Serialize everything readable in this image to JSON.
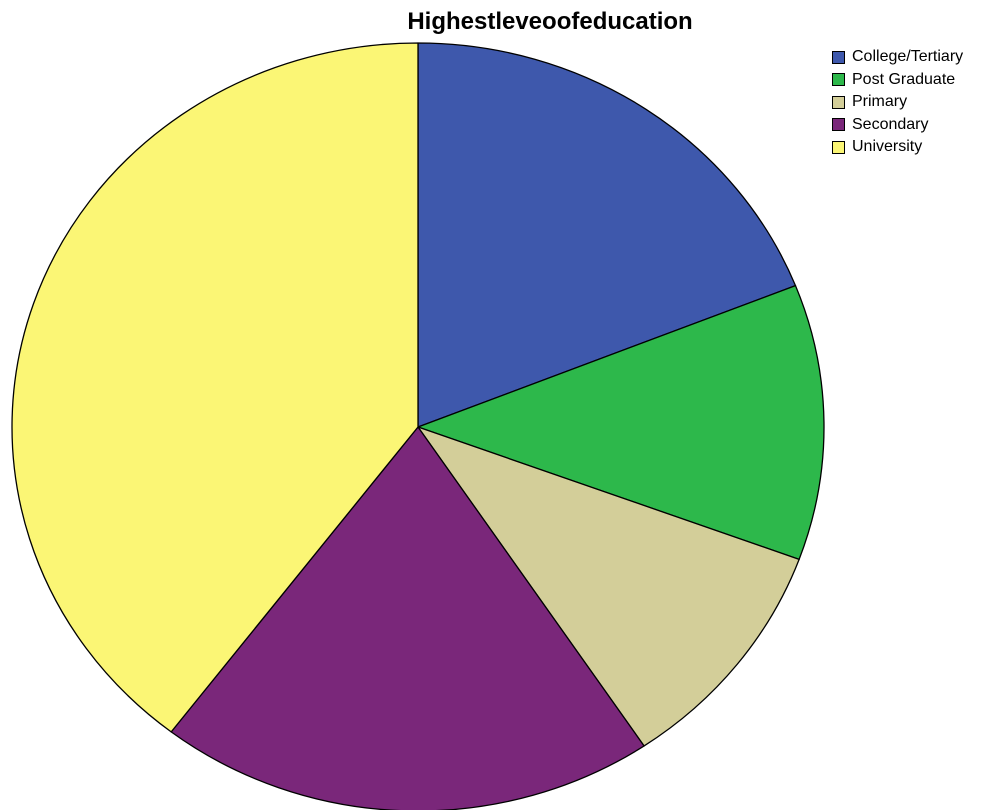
{
  "chart_data": {
    "type": "pie",
    "title": "Highestleveoofeducation",
    "categories": [
      "College/Tertiary",
      "Post Graduate",
      "Primary",
      "Secondary",
      "University"
    ],
    "values": [
      19.0,
      11.6,
      10.0,
      19.8,
      39.6
    ],
    "colors": [
      "#3e58ac",
      "#2db84b",
      "#d3ce99",
      "#7a277a",
      "#fbf675"
    ],
    "start_angle_deg": 0,
    "direction": "clockwise",
    "legend_position": "top-right"
  }
}
